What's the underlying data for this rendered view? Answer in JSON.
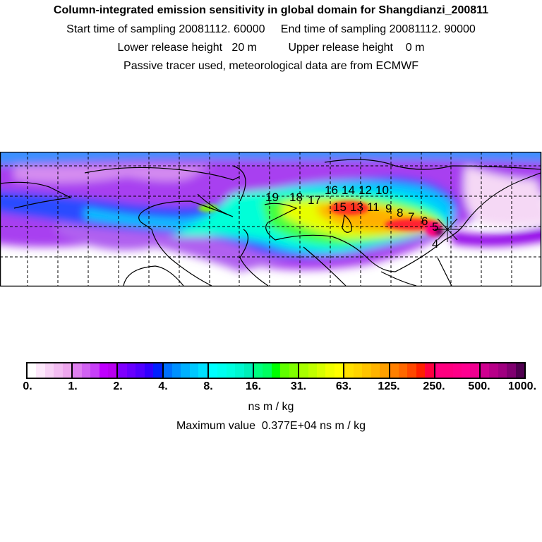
{
  "title": {
    "line1": "Column-integrated emission sensitivity in global domain for Shangdianzi_200811",
    "line2": "Start time of sampling 20081112. 60000     End time of sampling 20081112. 90000",
    "line3": "Lower release height   20 m          Upper release height    0 m",
    "line4": "Passive tracer used, meteorological data are from ECMWF"
  },
  "map": {
    "trajectory_labels": [
      "19",
      "18",
      "17",
      "16",
      "15",
      "14",
      "13",
      "12",
      "11",
      "10",
      "9",
      "8",
      "7",
      "6",
      "5",
      "4"
    ],
    "release_site_icon": "star-cross-icon"
  },
  "colorbar": {
    "ticks": [
      "0.",
      "1.",
      "2.",
      "4.",
      "8.",
      "16.",
      "31.",
      "63.",
      "125.",
      "250.",
      "500.",
      "1000."
    ],
    "segments": [
      [
        "#ffffff",
        "#fde8fb",
        "#f8d2f6",
        "#f3bcf2",
        "#eea6ee"
      ],
      [
        "#e080f0",
        "#d262f2",
        "#c840f8",
        "#c000ff",
        "#b800f0"
      ],
      [
        "#8000ff",
        "#6800ff",
        "#5000ff",
        "#3000ff",
        "#0020ff"
      ],
      [
        "#0070ff",
        "#0090ff",
        "#00b0ff",
        "#00c8ff",
        "#00e0ff"
      ],
      [
        "#00ffff",
        "#00fff0",
        "#00ffe0",
        "#00f8d0",
        "#00f0b8"
      ],
      [
        "#00ff80",
        "#00ff60",
        "#00ff00",
        "#60ff00",
        "#80ff00"
      ],
      [
        "#a8ff00",
        "#c0ff00",
        "#d8ff00",
        "#f0ff00",
        "#ffff00"
      ],
      [
        "#ffe000",
        "#ffd400",
        "#ffc400",
        "#ffb400",
        "#ffa000"
      ],
      [
        "#ff8000",
        "#ff6800",
        "#ff4800",
        "#ff2000",
        "#ff0040"
      ],
      [
        "#ff0080",
        "#ff0080",
        "#ff0088",
        "#ff0090",
        "#f00090"
      ],
      [
        "#d00090",
        "#b80088",
        "#a00080",
        "#800070",
        "#500050"
      ]
    ],
    "unit": "ns m / kg",
    "max_label": "Maximum value  0.377E+04 ns m / kg"
  }
}
